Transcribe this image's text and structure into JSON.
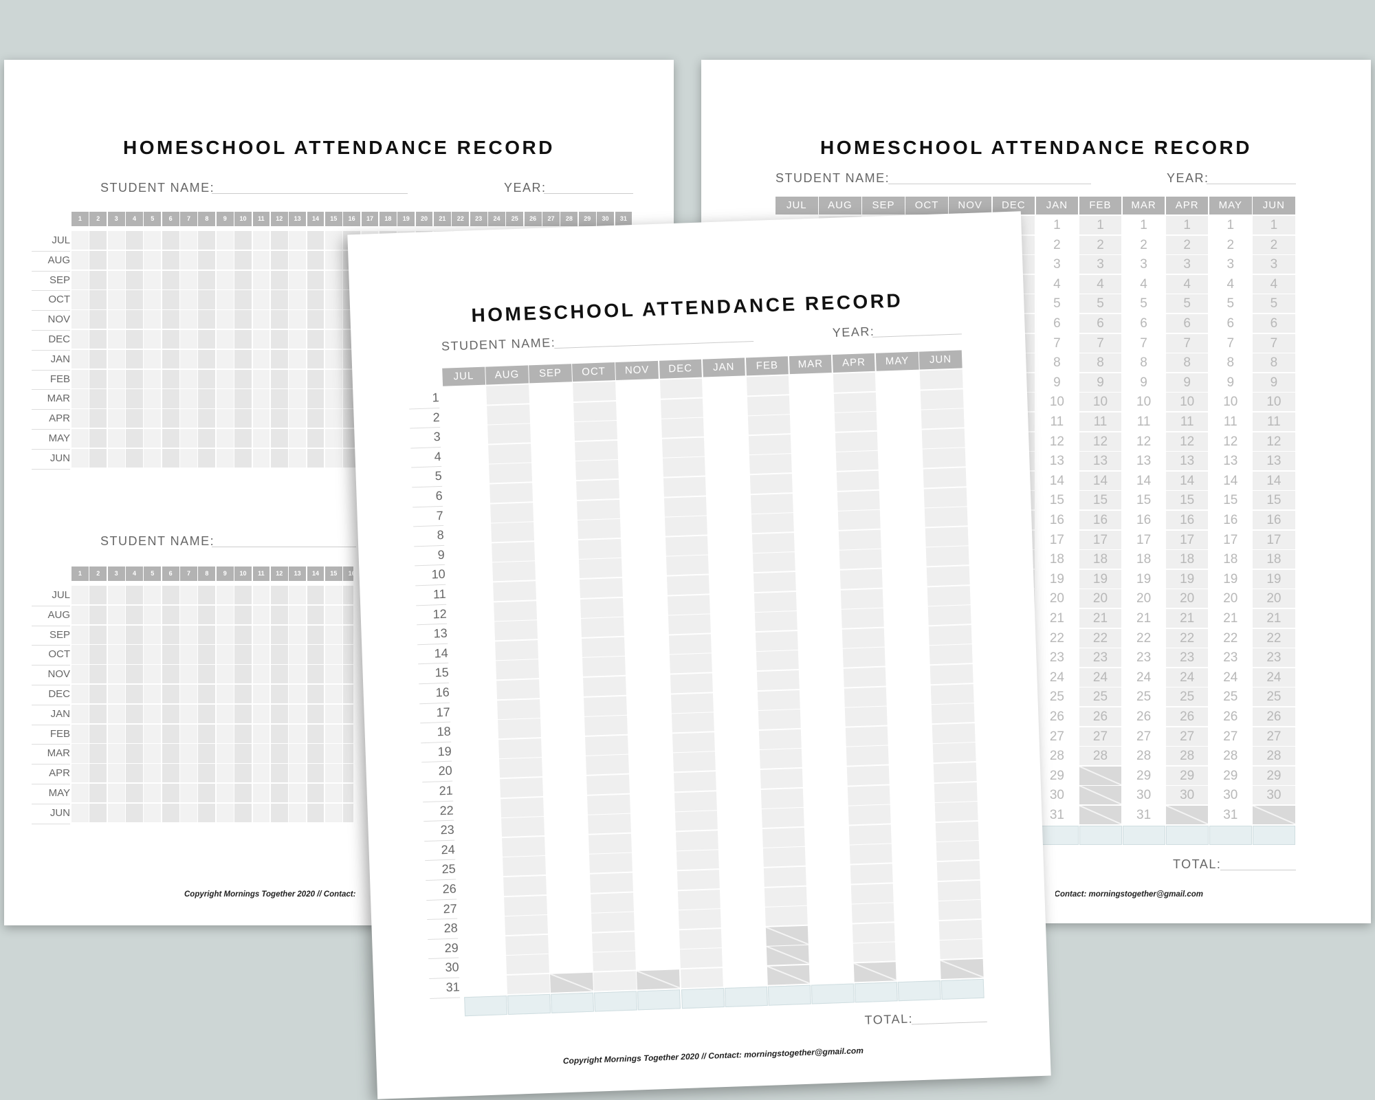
{
  "title": "HOMESCHOOL ATTENDANCE RECORD",
  "student_name_label": "STUDENT NAME:",
  "year_label": "YEAR:",
  "total_label": "TOTAL:",
  "copyright": "Copyright Mornings Together 2020 // Contact: morningstogether@gmail.com",
  "months": [
    "JUL",
    "AUG",
    "SEP",
    "OCT",
    "NOV",
    "DEC",
    "JAN",
    "FEB",
    "MAR",
    "APR",
    "MAY",
    "JUN"
  ],
  "day_numbers": [
    "1",
    "2",
    "3",
    "4",
    "5",
    "6",
    "7",
    "8",
    "9",
    "10",
    "11",
    "12",
    "13",
    "14",
    "15",
    "16",
    "17",
    "18",
    "19",
    "20",
    "21",
    "22",
    "23",
    "24",
    "25",
    "26",
    "27",
    "28",
    "29",
    "30",
    "31"
  ],
  "invalid_days": {
    "SEP": [
      31
    ],
    "NOV": [
      31
    ],
    "FEB": [
      29,
      30,
      31
    ],
    "APR": [
      31
    ],
    "JUN": [
      31
    ]
  },
  "colors": {
    "background": "#cdd6d5",
    "header": "#b3b3b3",
    "shaded_column": "#efefef",
    "invalid_cell": "#d9d9d9",
    "total_row": "#e6eff1"
  }
}
